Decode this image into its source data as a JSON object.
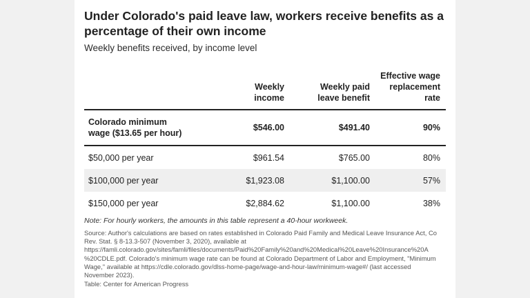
{
  "chart_data": {
    "type": "table",
    "title": "Under Colorado's paid leave law, workers receive benefits as a percentage of their own income",
    "subtitle": "Weekly benefits received, by income level",
    "columns": [
      "",
      "Weekly\nincome",
      "Weekly paid\nleave benefit",
      "Effective wage\nreplacement rate"
    ],
    "rows": [
      {
        "label": "Colorado minimum\nwage ($13.65 per hour)",
        "weekly_income": "$546.00",
        "weekly_benefit": "$491.40",
        "replacement_rate": "90%"
      },
      {
        "label": "$50,000 per year",
        "weekly_income": "$961.54",
        "weekly_benefit": "$765.00",
        "replacement_rate": "80%"
      },
      {
        "label": "$100,000 per year",
        "weekly_income": "$1,923.08",
        "weekly_benefit": "$1,100.00",
        "replacement_rate": "57%"
      },
      {
        "label": "$150,000 per year",
        "weekly_income": "$2,884.62",
        "weekly_benefit": "$1,100.00",
        "replacement_rate": "38%"
      }
    ],
    "note": "Note: For hourly workers, the amounts in this table represent a 40-hour workweek.",
    "source": "Source: Author's calculations are based on rates established in Colorado Paid Family and Medical Leave Insurance Act, Co\nRev. Stat. § 8-13.3-507 (November 3, 2020), available at\nhttps://famli.colorado.gov/sites/famli/files/documents/Paid%20Family%20and%20Medical%20Leave%20Insurance%20A\n%20CDLE.pdf. Colorado's minimum wage rate can be found at Colorado Department of Labor and Employment, \"Minimum\nWage,\" available at https://cdle.colorado.gov/dlss-home-page/wage-and-hour-law/minimum-wage#/ (last accessed\nNovember 2023).",
    "credit": "Table: Center for American Progress"
  }
}
